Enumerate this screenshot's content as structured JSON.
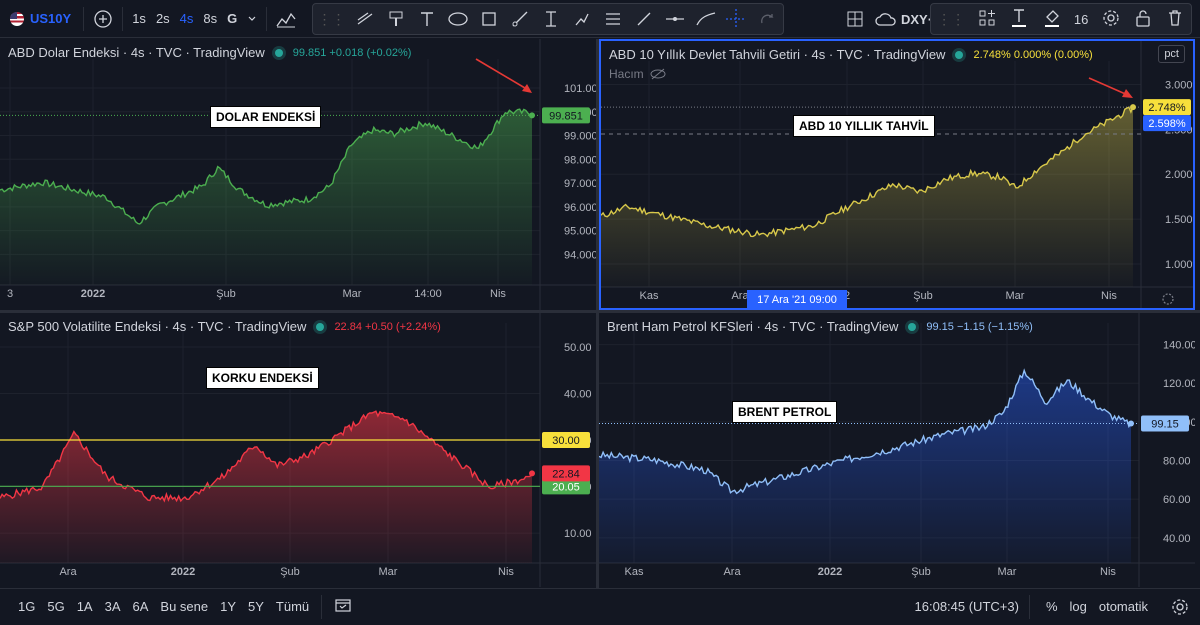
{
  "toolbar": {
    "symbol": "US10Y",
    "intervals": [
      "1s",
      "2s",
      "4s",
      "8s",
      "G"
    ],
    "active_interval": "4s",
    "compare_symbol": "DXY·",
    "font_size": "16"
  },
  "panes": [
    {
      "id": "dxy",
      "legend_title": "ABD Dolar Endeksi · 4s · TVC · TradingView",
      "legend_value": "99.851 +0.018 (+0.02%)",
      "legend_color": "#26a69a",
      "annotation": "DOLAR ENDEKSİ",
      "line_color": "#4caf50",
      "price_label": "99.851",
      "price_label_bg": "#4caf50",
      "y_ticks": [
        "101.000",
        "100.000",
        "99.000",
        "98.000",
        "97.000",
        "96.000",
        "95.000",
        "94.000"
      ],
      "x_ticks": [
        "3",
        "2022",
        "Şub",
        "Mar",
        "14:00",
        "Nis"
      ]
    },
    {
      "id": "us10y",
      "legend_title": "ABD 10 Yıllık Devlet Tahvili Getiri · 4s · TVC · TradingView",
      "legend_value": "2.748% 0.000% (0.00%)",
      "legend_color": "#f7e03b",
      "sub_label": "Hacım",
      "annotation": "ABD 10 YILLIK TAHVİL",
      "line_color": "#d8c84a",
      "price_label": "2.748%",
      "price_label_bg": "#f7e03b",
      "price_label2": "2.598%",
      "scale_btn": "pct",
      "y_ticks": [
        "3.000%",
        "2.500%",
        "2.000%",
        "1.500%",
        "1.000%"
      ],
      "x_ticks": [
        "Kas",
        "Ara",
        "2",
        "Şub",
        "Mar",
        "Nis"
      ],
      "crosshair_label": "17 Ara '21   09:00"
    },
    {
      "id": "vix",
      "legend_title": "S&P 500 Volatilite Endeksi · 4s · TVC · TradingView",
      "legend_value": "22.84 +0.50 (+2.24%)",
      "legend_color": "#f23645",
      "annotation": "KORKU ENDEKSİ",
      "line_color": "#f23645",
      "price_label": "22.84",
      "price_label_bg": "#f23645",
      "hline_yellow": "30.00",
      "hline_green": "20.05",
      "y_ticks": [
        "50.00",
        "40.00",
        "30.00",
        "20.00",
        "10.00"
      ],
      "x_ticks": [
        "Ara",
        "2022",
        "Şub",
        "Mar",
        "Nis"
      ]
    },
    {
      "id": "brent",
      "legend_title": "Brent Ham Petrol KFSleri · 4s · TVC · TradingView",
      "legend_value": "99.15 −1.15 (−1.15%)",
      "legend_color": "#90bff9",
      "annotation": "BRENT PETROL",
      "line_color": "#90bff9",
      "price_label": "99.15",
      "price_label_bg": "#90bff9",
      "y_ticks": [
        "140.00",
        "120.00",
        "100.00",
        "80.00",
        "60.00",
        "40.00"
      ],
      "x_ticks": [
        "Kas",
        "Ara",
        "2022",
        "Şub",
        "Mar",
        "Nis"
      ]
    }
  ],
  "bottom": {
    "ranges": [
      "1G",
      "5G",
      "1A",
      "3A",
      "6A",
      "Bu sene",
      "1Y",
      "5Y",
      "Tümü"
    ],
    "time": "16:08:45 (UTC+3)",
    "percent": "%",
    "log": "log",
    "auto": "otomatik"
  },
  "icons": [
    "plus-icon",
    "candles-icon",
    "trend-line-icon",
    "brush-icon",
    "text-icon",
    "ellipse-icon",
    "rectangle-icon",
    "ray-icon",
    "text-anchor-icon",
    "path-icon",
    "channel-icon",
    "line-icon",
    "hline-icon",
    "curve-icon",
    "crosshair-icon",
    "redo-icon",
    "layout-icon",
    "cloud-icon",
    "widgets-icon",
    "text-color-icon",
    "fill-icon",
    "settings-icon",
    "lock-icon",
    "trash-icon",
    "calendar-icon",
    "gear-icon"
  ]
}
